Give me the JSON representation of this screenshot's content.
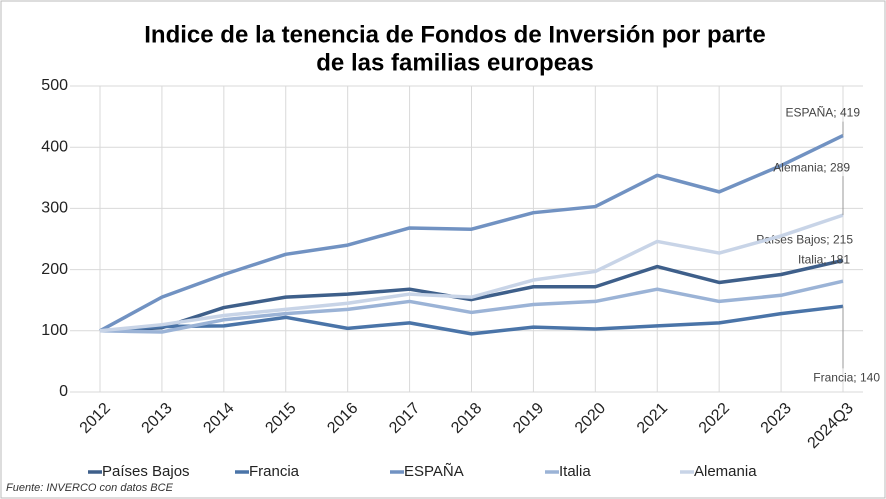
{
  "chart_data": {
    "type": "line",
    "title": [
      "Indice de la tenencia de Fondos de Inversión por parte",
      "de las familias europeas"
    ],
    "categories": [
      "2012",
      "2013",
      "2014",
      "2015",
      "2016",
      "2017",
      "2018",
      "2019",
      "2020",
      "2021",
      "2022",
      "2023",
      "2024Q3"
    ],
    "series": [
      {
        "name": "Países Bajos",
        "color": "#3e5f8a",
        "values": [
          100,
          105,
          138,
          155,
          160,
          168,
          151,
          172,
          172,
          205,
          179,
          192,
          215
        ],
        "value_labels": [
          null,
          null,
          null,
          null,
          null,
          null,
          null,
          null,
          null,
          null,
          null,
          null,
          "Países Bajos; 215"
        ]
      },
      {
        "name": "Francia",
        "color": "#4a74a8",
        "values": [
          100,
          107,
          108,
          122,
          104,
          113,
          95,
          106,
          103,
          108,
          113,
          128,
          140
        ],
        "value_labels": [
          null,
          null,
          null,
          null,
          null,
          null,
          null,
          null,
          null,
          null,
          null,
          null,
          "Francia; 140"
        ]
      },
      {
        "name": "ESPAÑA",
        "color": "#7192c2",
        "values": [
          100,
          155,
          192,
          225,
          240,
          268,
          266,
          293,
          303,
          354,
          327,
          370,
          419
        ],
        "value_labels": [
          null,
          null,
          null,
          null,
          null,
          null,
          null,
          null,
          null,
          null,
          null,
          null,
          "ESPAÑA; 419"
        ]
      },
      {
        "name": "Italia",
        "color": "#9bb3d6",
        "values": [
          100,
          98,
          118,
          128,
          135,
          148,
          130,
          143,
          148,
          168,
          148,
          158,
          181
        ],
        "value_labels": [
          null,
          null,
          null,
          null,
          null,
          null,
          null,
          null,
          null,
          null,
          null,
          null,
          "Italia; 181"
        ]
      },
      {
        "name": "Alemania",
        "color": "#c8d4e7",
        "values": [
          100,
          110,
          125,
          135,
          145,
          160,
          155,
          183,
          197,
          246,
          227,
          255,
          289
        ],
        "value_labels": [
          null,
          null,
          null,
          null,
          null,
          null,
          null,
          null,
          null,
          null,
          null,
          null,
          "Alemania; 289"
        ]
      }
    ],
    "ylim": [
      0,
      500
    ],
    "yticks": [
      0,
      100,
      200,
      300,
      400,
      500
    ],
    "grid": true,
    "legend": "bottom",
    "source": "Fuente: INVERCO con datos BCE"
  }
}
